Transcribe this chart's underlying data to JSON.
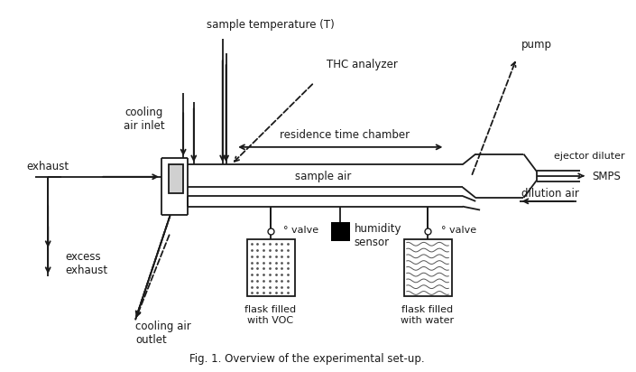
{
  "title": "Fig. 1. Overview of the experimental set-up.",
  "bg_color": "#ffffff",
  "line_color": "#1a1a1a",
  "figsize": [
    7.05,
    4.12
  ],
  "dpi": 100,
  "labels": {
    "sample_temp": "sample temperature (T)",
    "thc_analyzer": "THC analyzer",
    "residence_chamber": "residence time chamber",
    "sample_air": "sample air",
    "exhaust": "exhaust",
    "cooling_air_inlet": "cooling\nair inlet",
    "excess_exhaust": "excess\nexhaust",
    "cooling_air_outlet": "cooling air\noutlet",
    "pump": "pump",
    "ejector_diluter": "ejector diluter",
    "smps": "SMPS",
    "dilution_air": "dilution air",
    "valve1": "° valve",
    "valve2": "° valve",
    "humidity_sensor": "humidity\nsensor",
    "flask_voc": "flask filled\nwith VOC",
    "flask_water": "flask filled\nwith water"
  }
}
